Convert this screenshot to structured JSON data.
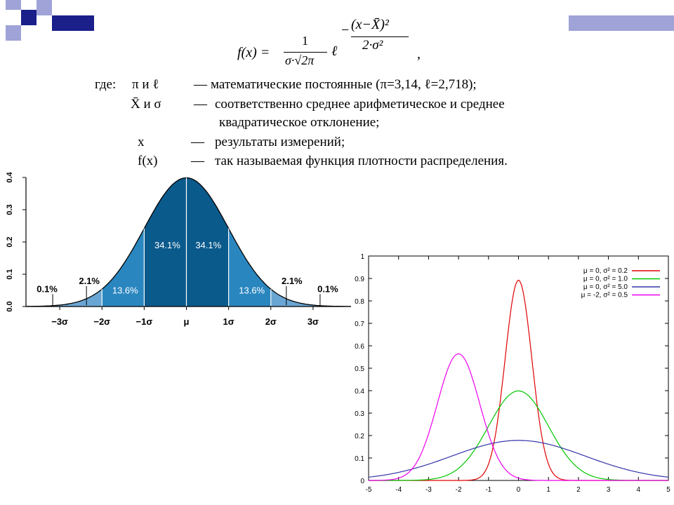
{
  "formula": {
    "lhs": "f(x) =",
    "numerator": "1",
    "denominator": "σ·√2π",
    "base": "ℓ",
    "exp_sign": "−",
    "exp_numerator": "(x−X̄)²",
    "exp_denominator": "2·σ²",
    "trailing": ","
  },
  "definitions": {
    "intro": "где:",
    "rows": [
      {
        "symbol": "π и ℓ",
        "dash": "—",
        "text": "математические постоянные (π=3,14,  ℓ=2,718);"
      },
      {
        "symbol": "X̄  и σ",
        "dash": "—",
        "text": "соответственно среднее арифметическое и среднее"
      },
      {
        "symbol": "",
        "dash": "",
        "text": "квадратическое отклонение;"
      },
      {
        "symbol": "x",
        "dash": "—",
        "text": "результаты измерений;"
      },
      {
        "symbol": "f(x)",
        "dash": "—",
        "text": "так называемая функция плотности распределения."
      }
    ]
  },
  "colors": {
    "deco_navy": "#1a1f8a",
    "deco_lavender": "#9fa3d8",
    "bell_dark": "#0b5a8c",
    "bell_mid": "#2a86bf",
    "bell_light": "#6aa6d3",
    "series_red": "#e00000",
    "series_green": "#00c800",
    "series_blue": "#3333aa",
    "series_magenta": "#ee00ee"
  },
  "chart_data": [
    {
      "type": "area",
      "y_ticks": [
        "0.0",
        "0.1",
        "0.2",
        "0.3",
        "0.4"
      ],
      "ylim": [
        0,
        0.4
      ],
      "x_ticks": [
        "−3σ",
        "−2σ",
        "−1σ",
        "μ",
        "1σ",
        "2σ",
        "3σ"
      ],
      "x_tick_values": [
        -3,
        -2,
        -1,
        0,
        1,
        2,
        3
      ],
      "xlim": [
        -3.8,
        3.9
      ],
      "bands": [
        {
          "from": -1,
          "to": 0,
          "label": "34.1%"
        },
        {
          "from": 0,
          "to": 1,
          "label": "34.1%"
        },
        {
          "from": -2,
          "to": -1,
          "label": "13.6%"
        },
        {
          "from": 1,
          "to": 2,
          "label": "13.6%"
        },
        {
          "from": -3,
          "to": -2,
          "label": "2.1%"
        },
        {
          "from": 2,
          "to": 3,
          "label": "2.1%"
        },
        {
          "from": -3.8,
          "to": -3,
          "label": "0.1%"
        },
        {
          "from": 3,
          "to": 3.8,
          "label": "0.1%"
        }
      ]
    },
    {
      "type": "line",
      "xlim": [
        -5,
        5
      ],
      "ylim": [
        0,
        1
      ],
      "x_ticks": [
        -5,
        -4,
        -3,
        -2,
        -1,
        0,
        1,
        2,
        3,
        4,
        5
      ],
      "y_ticks": [
        0,
        0.1,
        0.2,
        0.3,
        0.4,
        0.5,
        0.6,
        0.7,
        0.8,
        0.9,
        1
      ],
      "legend_position": "top-right",
      "series": [
        {
          "name": "μ =  0, σ² = 0.2",
          "mu": 0,
          "variance": 0.2,
          "color": "#e00000"
        },
        {
          "name": "μ =  0, σ² = 1.0",
          "mu": 0,
          "variance": 1.0,
          "color": "#00c800"
        },
        {
          "name": "μ =  0, σ² = 5.0",
          "mu": 0,
          "variance": 5.0,
          "color": "#3333aa"
        },
        {
          "name": "μ = -2, σ² = 0.5",
          "mu": -2,
          "variance": 0.5,
          "color": "#ee00ee"
        }
      ]
    }
  ]
}
